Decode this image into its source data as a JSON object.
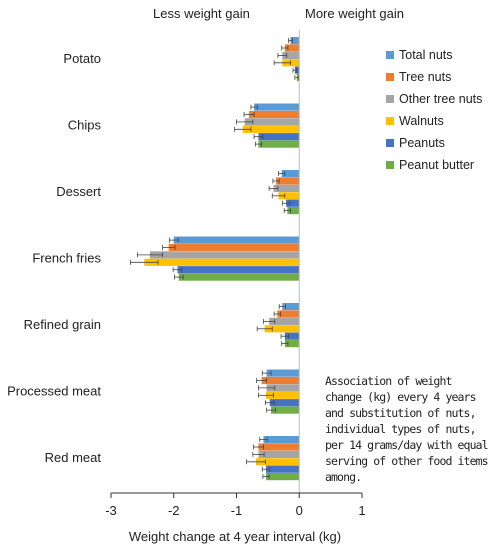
{
  "header": {
    "left": "Less weight gain",
    "right": "More weight gain"
  },
  "note": "Association of weight change (kg) every 4 years and substitution of nuts, individual types of nuts, per 14 grams/day with equal serving of other food items among.",
  "chart_data": {
    "type": "bar",
    "orientation": "horizontal",
    "xlabel": "Weight change at 4 year interval (kg)",
    "xlim": [
      -3,
      1
    ],
    "xticks": [
      "-3",
      "-2",
      "-1",
      "0",
      "1"
    ],
    "categories": [
      "Potato",
      "Chips",
      "Dessert",
      "French fries",
      "Refined grain",
      "Processed meat",
      "Red meat"
    ],
    "series": [
      {
        "name": "Total nuts",
        "color": "#5B9BD5",
        "values": [
          -0.14,
          -0.72,
          -0.28,
          -2.0,
          -0.27,
          -0.52,
          -0.57
        ],
        "error": [
          0.03,
          0.05,
          0.05,
          0.07,
          0.05,
          0.07,
          0.06
        ]
      },
      {
        "name": "Tree nuts",
        "color": "#ED7D31",
        "values": [
          -0.23,
          -0.8,
          -0.37,
          -2.08,
          -0.35,
          -0.6,
          -0.65
        ],
        "error": [
          0.05,
          0.08,
          0.05,
          0.1,
          0.05,
          0.08,
          0.08
        ]
      },
      {
        "name": "Other tree nuts",
        "color": "#A5A5A5",
        "values": [
          -0.27,
          -0.87,
          -0.41,
          -2.38,
          -0.48,
          -0.52,
          -0.65
        ],
        "error": [
          0.07,
          0.13,
          0.07,
          0.2,
          0.09,
          0.13,
          0.09
        ]
      },
      {
        "name": "Walnuts",
        "color": "#FFC000",
        "values": [
          -0.27,
          -0.9,
          -0.33,
          -2.47,
          -0.55,
          -0.53,
          -0.69
        ],
        "error": [
          0.13,
          0.13,
          0.1,
          0.22,
          0.12,
          0.12,
          0.15
        ]
      },
      {
        "name": "Peanuts",
        "color": "#4472C4",
        "values": [
          -0.07,
          -0.65,
          -0.21,
          -1.94,
          -0.23,
          -0.47,
          -0.53
        ],
        "error": [
          0.03,
          0.07,
          0.06,
          0.07,
          0.06,
          0.07,
          0.06
        ]
      },
      {
        "name": "Peanut butter",
        "color": "#70AD47",
        "values": [
          -0.04,
          -0.65,
          -0.19,
          -1.92,
          -0.23,
          -0.45,
          -0.53
        ],
        "error": [
          0.03,
          0.05,
          0.05,
          0.07,
          0.05,
          0.07,
          0.05
        ]
      }
    ],
    "grid": false,
    "legend": "right"
  }
}
